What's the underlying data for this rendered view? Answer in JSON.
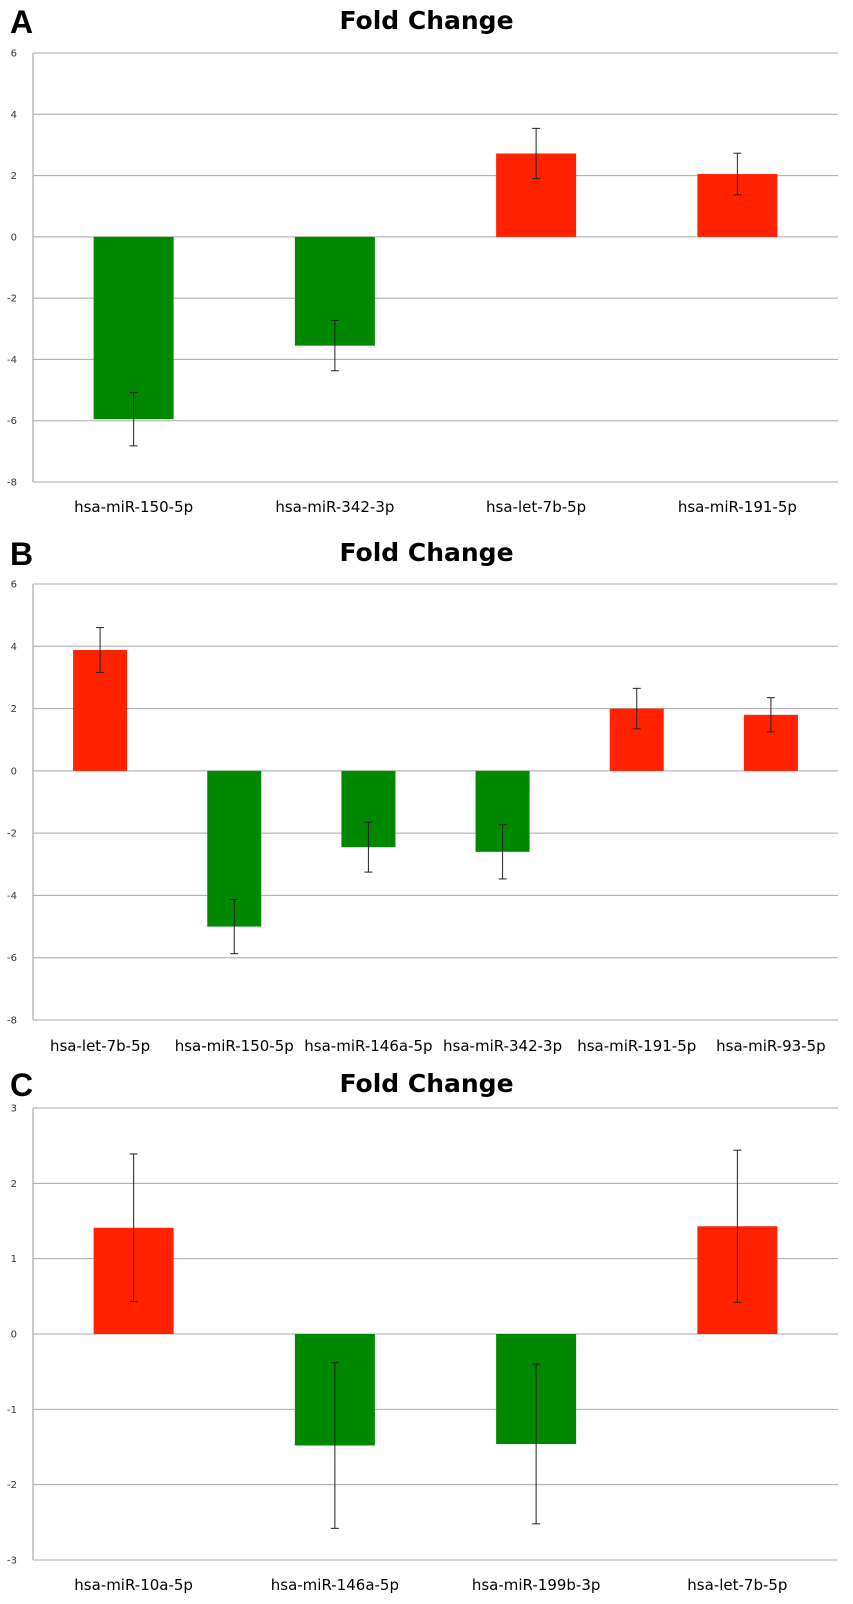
{
  "panels": [
    {
      "letter": "A",
      "title": "Fold Change"
    },
    {
      "letter": "B",
      "title": "Fold Change"
    },
    {
      "letter": "C",
      "title": "Fold Change"
    }
  ],
  "colors": {
    "up": "#ff2200",
    "down": "#008800",
    "grid": "#a8a8a8",
    "axis": "#9a9a9a",
    "errorbar": "#222222"
  },
  "chart_data": [
    {
      "type": "bar",
      "title": "Fold Change",
      "xlabel": "",
      "ylabel": "",
      "categories": [
        "hsa-miR-150-5p",
        "hsa-miR-342-3p",
        "hsa-let-7b-5p",
        "hsa-miR-191-5p"
      ],
      "values": [
        -5.95,
        -3.55,
        2.72,
        2.05
      ],
      "error": [
        0.87,
        0.82,
        0.82,
        0.68
      ],
      "ylim": [
        -8,
        6
      ],
      "yticks": [
        "-8",
        "-6",
        "-4",
        "-2",
        "0",
        "2",
        "4",
        "6"
      ],
      "grid": true,
      "legend": "none"
    },
    {
      "type": "bar",
      "title": "Fold Change",
      "xlabel": "",
      "ylabel": "",
      "categories": [
        "hsa-let-7b-5p",
        "hsa-miR-150-5p",
        "hsa-miR-146a-5p",
        "hsa-miR-342-3p",
        "hsa-miR-191-5p",
        "hsa-miR-93-5p"
      ],
      "values": [
        3.88,
        -5.0,
        -2.45,
        -2.6,
        2.0,
        1.8
      ],
      "error": [
        0.72,
        0.87,
        0.8,
        0.87,
        0.65,
        0.55
      ],
      "ylim": [
        -8,
        6
      ],
      "yticks": [
        "-8",
        "-6",
        "-4",
        "-2",
        "0",
        "2",
        "4",
        "6"
      ],
      "grid": true,
      "legend": "none"
    },
    {
      "type": "bar",
      "title": "Fold Change",
      "xlabel": "",
      "ylabel": "",
      "categories": [
        "hsa-miR-10a-5p",
        "hsa-miR-146a-5p",
        "hsa-miR-199b-3p",
        "hsa-let-7b-5p"
      ],
      "values": [
        1.41,
        -1.48,
        -1.46,
        1.43
      ],
      "error": [
        0.98,
        1.1,
        1.06,
        1.01
      ],
      "ylim": [
        -3,
        3
      ],
      "yticks": [
        "-3",
        "-2",
        "-1",
        "0",
        "1",
        "2",
        "3"
      ],
      "grid": true,
      "legend": "none"
    }
  ]
}
